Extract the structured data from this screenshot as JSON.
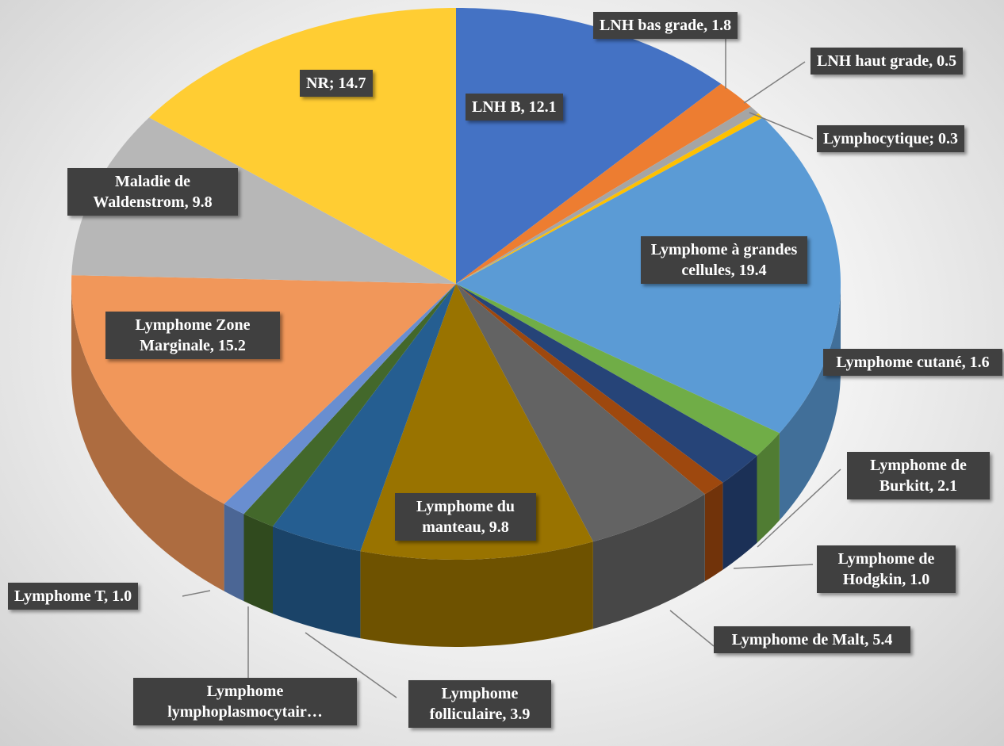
{
  "chart_data": {
    "type": "pie3d",
    "values": [
      12.1,
      1.8,
      0.5,
      0.3,
      19.4,
      1.6,
      2.1,
      1.0,
      5.4,
      9.8,
      3.9,
      1.4,
      1.0,
      15.2,
      9.8,
      14.7
    ],
    "value_labels": [
      "LNH B, 12.1",
      "LNH bas grade, 1.8",
      "LNH haut grade, 0.5",
      "Lymphocytique; 0.3",
      "Lymphome à grandes cellules, 19.4",
      "Lymphome cutané, 1.6",
      "Lymphome de Burkitt, 2.1",
      "Lymphome de Hodgkin, 1.0",
      "Lymphome de Malt, 5.4",
      "Lymphome du manteau, 9.8",
      "Lymphome folliculaire, 3.9",
      "Lymphome lymphoplasmocytair…",
      "Lymphome T, 1.0",
      "Lymphome Zone Marginale, 15.2",
      "Maladie de Waldenstrom, 9.8",
      "NR; 14.7"
    ],
    "colors": [
      "#4472c4",
      "#ed7d31",
      "#a5a5a5",
      "#ffc000",
      "#5b9bd5",
      "#70ad47",
      "#264478",
      "#9e480e",
      "#636363",
      "#997300",
      "#255e91",
      "#43682b",
      "#698ed0",
      "#f1975a",
      "#b7b7b7",
      "#ffcd33"
    ]
  }
}
